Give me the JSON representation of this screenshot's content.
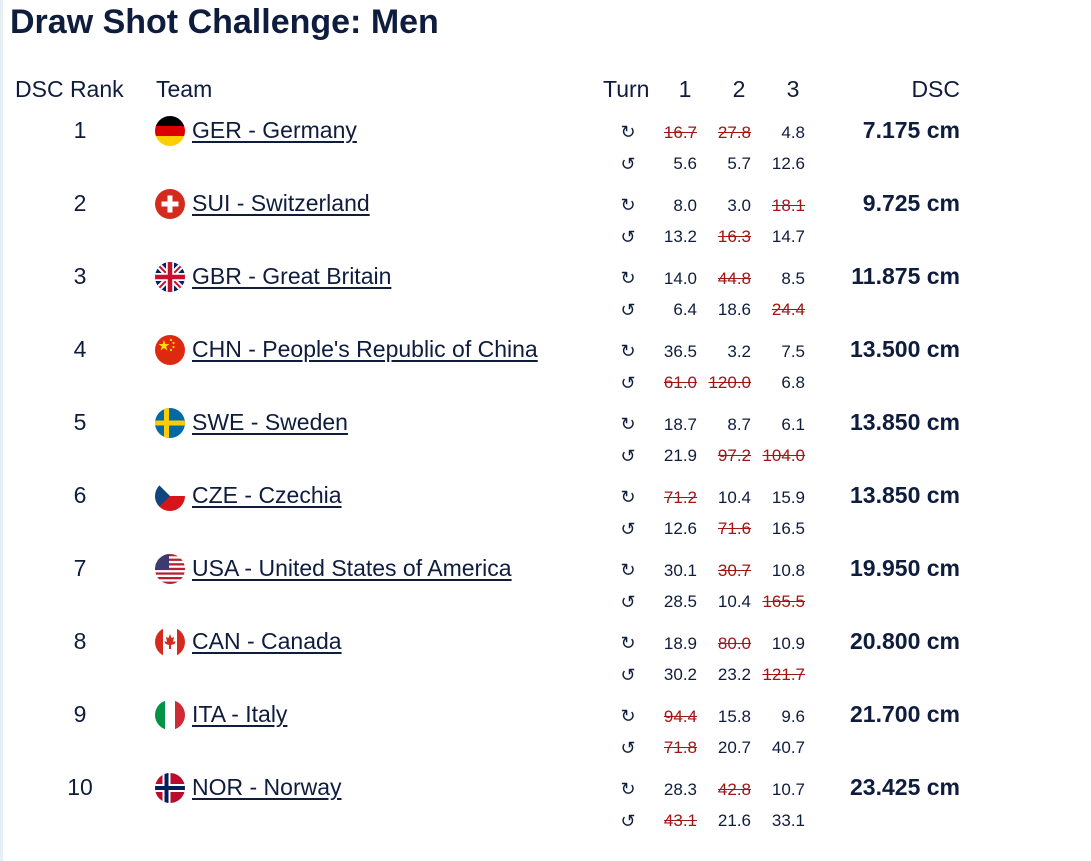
{
  "title": "Draw Shot Challenge: Men",
  "headers": {
    "rank": "DSC Rank",
    "team": "Team",
    "turn": "Turn",
    "c1": "1",
    "c2": "2",
    "c3": "3",
    "dsc": "DSC"
  },
  "turn_icons": {
    "clockwise": "↻",
    "counterclockwise": "↺"
  },
  "colors": {
    "text": "#0e1c3d",
    "dropped": "#a01616"
  },
  "rows": [
    {
      "rank": "1",
      "team": "GER - Germany",
      "flag": "germany-flag-icon",
      "dsc": "7.175 cm",
      "cw": [
        "16.7",
        "27.8",
        "4.8"
      ],
      "ccw": [
        "5.6",
        "5.7",
        "12.6"
      ],
      "dropped_cw": [
        0,
        1
      ],
      "dropped_ccw": []
    },
    {
      "rank": "2",
      "team": "SUI - Switzerland",
      "flag": "switzerland-flag-icon",
      "dsc": "9.725 cm",
      "cw": [
        "8.0",
        "3.0",
        "18.1"
      ],
      "ccw": [
        "13.2",
        "16.3",
        "14.7"
      ],
      "dropped_cw": [
        2
      ],
      "dropped_ccw": [
        1
      ]
    },
    {
      "rank": "3",
      "team": "GBR - Great Britain",
      "flag": "great-britain-flag-icon",
      "dsc": "11.875 cm",
      "cw": [
        "14.0",
        "44.8",
        "8.5"
      ],
      "ccw": [
        "6.4",
        "18.6",
        "24.4"
      ],
      "dropped_cw": [
        1
      ],
      "dropped_ccw": [
        2
      ]
    },
    {
      "rank": "4",
      "team": "CHN - People's Republic of China",
      "flag": "china-flag-icon",
      "dsc": "13.500 cm",
      "cw": [
        "36.5",
        "3.2",
        "7.5"
      ],
      "ccw": [
        "61.0",
        "120.0",
        "6.8"
      ],
      "dropped_cw": [],
      "dropped_ccw": [
        0,
        1
      ]
    },
    {
      "rank": "5",
      "team": "SWE - Sweden",
      "flag": "sweden-flag-icon",
      "dsc": "13.850 cm",
      "cw": [
        "18.7",
        "8.7",
        "6.1"
      ],
      "ccw": [
        "21.9",
        "97.2",
        "104.0"
      ],
      "dropped_cw": [],
      "dropped_ccw": [
        1,
        2
      ]
    },
    {
      "rank": "6",
      "team": "CZE - Czechia",
      "flag": "czechia-flag-icon",
      "dsc": "13.850 cm",
      "cw": [
        "71.2",
        "10.4",
        "15.9"
      ],
      "ccw": [
        "12.6",
        "71.6",
        "16.5"
      ],
      "dropped_cw": [
        0
      ],
      "dropped_ccw": [
        1
      ]
    },
    {
      "rank": "7",
      "team": "USA - United States of America",
      "flag": "usa-flag-icon",
      "dsc": "19.950 cm",
      "cw": [
        "30.1",
        "30.7",
        "10.8"
      ],
      "ccw": [
        "28.5",
        "10.4",
        "165.5"
      ],
      "dropped_cw": [
        1
      ],
      "dropped_ccw": [
        2
      ]
    },
    {
      "rank": "8",
      "team": "CAN - Canada",
      "flag": "canada-flag-icon",
      "dsc": "20.800 cm",
      "cw": [
        "18.9",
        "80.0",
        "10.9"
      ],
      "ccw": [
        "30.2",
        "23.2",
        "121.7"
      ],
      "dropped_cw": [
        1
      ],
      "dropped_ccw": [
        2
      ]
    },
    {
      "rank": "9",
      "team": "ITA - Italy",
      "flag": "italy-flag-icon",
      "dsc": "21.700 cm",
      "cw": [
        "94.4",
        "15.8",
        "9.6"
      ],
      "ccw": [
        "71.8",
        "20.7",
        "40.7"
      ],
      "dropped_cw": [
        0
      ],
      "dropped_ccw": [
        0
      ]
    },
    {
      "rank": "10",
      "team": "NOR - Norway",
      "flag": "norway-flag-icon",
      "dsc": "23.425 cm",
      "cw": [
        "28.3",
        "42.8",
        "10.7"
      ],
      "ccw": [
        "43.1",
        "21.6",
        "33.1"
      ],
      "dropped_cw": [
        1
      ],
      "dropped_ccw": [
        0
      ]
    }
  ]
}
